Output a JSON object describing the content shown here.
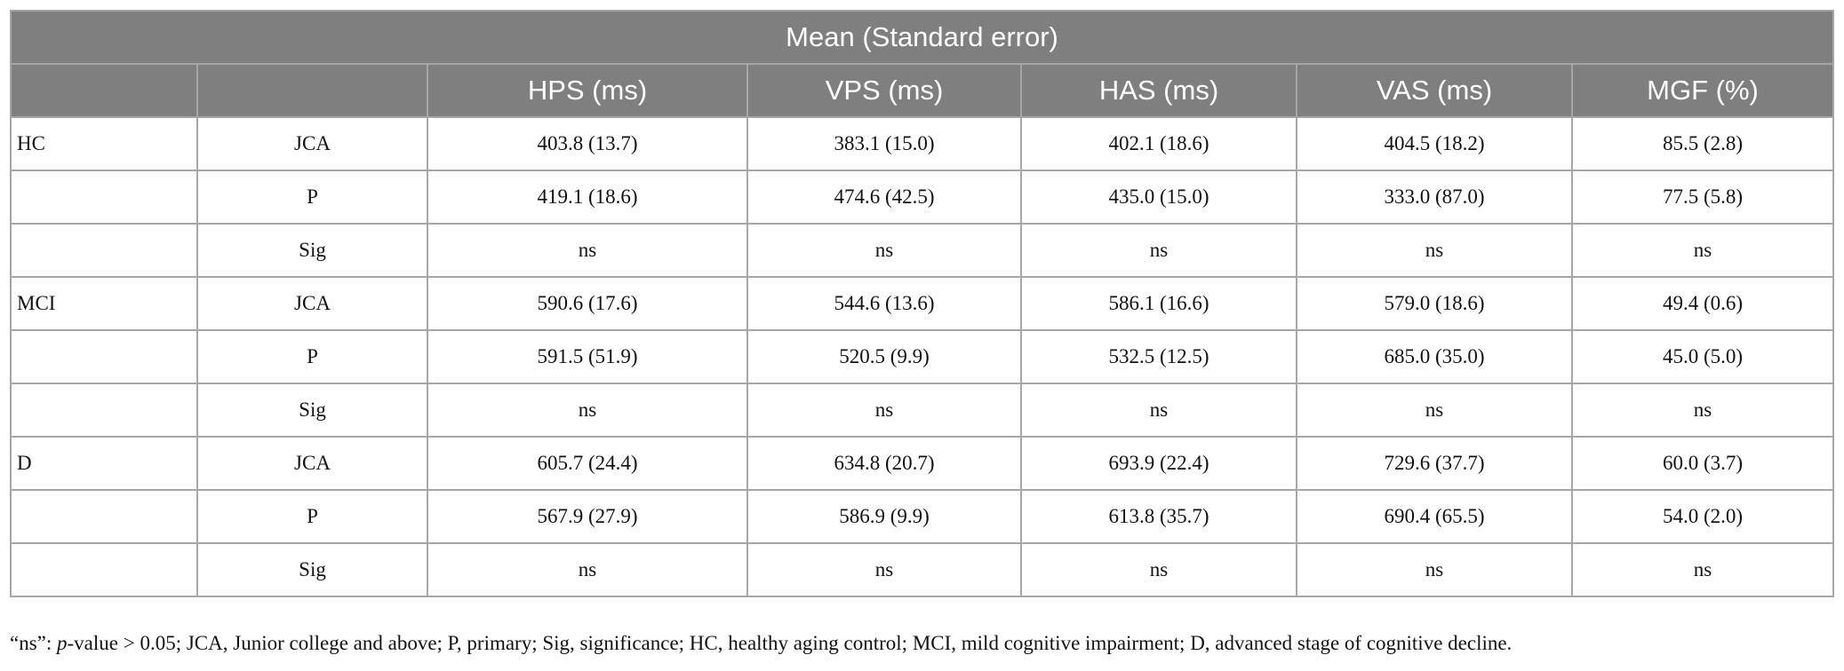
{
  "table": {
    "title": "Mean (Standard error)",
    "columns": [
      "HPS (ms)",
      "VPS (ms)",
      "HAS (ms)",
      "VAS (ms)",
      "MGF (%)"
    ],
    "groups": [
      {
        "name": "HC",
        "rows": [
          {
            "label": "JCA",
            "values": [
              "403.8 (13.7)",
              "383.1 (15.0)",
              "402.1 (18.6)",
              "404.5 (18.2)",
              "85.5 (2.8)"
            ]
          },
          {
            "label": "P",
            "values": [
              "419.1 (18.6)",
              "474.6 (42.5)",
              "435.0 (15.0)",
              "333.0 (87.0)",
              "77.5 (5.8)"
            ]
          },
          {
            "label": "Sig",
            "values": [
              "ns",
              "ns",
              "ns",
              "ns",
              "ns"
            ]
          }
        ]
      },
      {
        "name": "MCI",
        "rows": [
          {
            "label": "JCA",
            "values": [
              "590.6 (17.6)",
              "544.6 (13.6)",
              "586.1 (16.6)",
              "579.0 (18.6)",
              "49.4 (0.6)"
            ]
          },
          {
            "label": "P",
            "values": [
              "591.5 (51.9)",
              "520.5 (9.9)",
              "532.5 (12.5)",
              "685.0 (35.0)",
              "45.0 (5.0)"
            ]
          },
          {
            "label": "Sig",
            "values": [
              "ns",
              "ns",
              "ns",
              "ns",
              "ns"
            ]
          }
        ]
      },
      {
        "name": "D",
        "rows": [
          {
            "label": "JCA",
            "values": [
              "605.7 (24.4)",
              "634.8 (20.7)",
              "693.9 (22.4)",
              "729.6 (37.7)",
              "60.0 (3.7)"
            ]
          },
          {
            "label": "P",
            "values": [
              "567.9 (27.9)",
              "586.9 (9.9)",
              "613.8 (35.7)",
              "690.4 (65.5)",
              "54.0 (2.0)"
            ]
          },
          {
            "label": "Sig",
            "values": [
              "ns",
              "ns",
              "ns",
              "ns",
              "ns"
            ]
          }
        ]
      }
    ]
  },
  "footnote": [
    "“ns”: ",
    "p",
    "-value > 0.05; JCA, Junior college and above; P, primary; Sig, significance; HC, healthy aging control; MCI, mild cognitive impairment; D, advanced stage of cognitive decline."
  ]
}
